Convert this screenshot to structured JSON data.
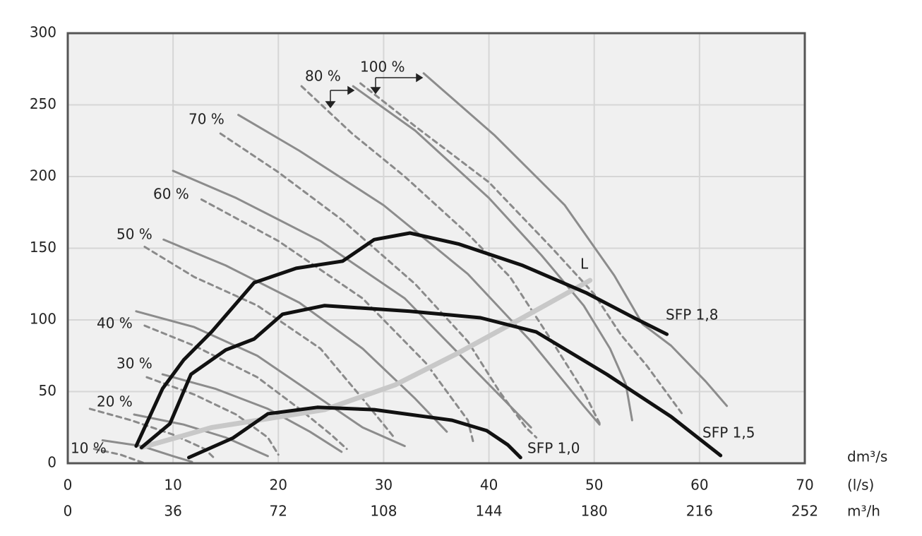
{
  "chart_data": {
    "type": "line",
    "x_unit_label": "dm³/s",
    "x_unit_label_2": "(l/s)",
    "x2_unit_label": "m³/h",
    "xlim": [
      0,
      70
    ],
    "xticks": [
      0,
      10,
      20,
      30,
      40,
      50,
      60,
      70
    ],
    "x2lim": [
      0,
      252
    ],
    "x2ticks": [
      0,
      36,
      72,
      108,
      144,
      180,
      216,
      252
    ],
    "ylim": [
      0,
      300
    ],
    "yticks": [
      0,
      50,
      100,
      150,
      200,
      250,
      300
    ],
    "grid": true,
    "speed_curves": [
      {
        "label": "10 %",
        "solid_x": [
          3.3,
          7,
          10,
          11.8
        ],
        "solid_y": [
          16,
          12,
          5,
          1
        ],
        "dashed_x": [
          2.5,
          5,
          7.3
        ],
        "dashed_y": [
          10,
          6,
          0
        ]
      },
      {
        "label": "20 %",
        "solid_x": [
          6.3,
          11,
          15,
          19
        ],
        "solid_y": [
          34,
          27,
          18,
          5
        ],
        "dashed_x": [
          2.1,
          6,
          10,
          13,
          14
        ],
        "dashed_y": [
          38,
          30,
          20,
          10,
          3
        ]
      },
      {
        "label": "30 %",
        "solid_x": [
          9,
          14,
          19,
          23,
          26
        ],
        "solid_y": [
          62,
          52,
          38,
          22,
          8
        ],
        "dashed_x": [
          7.5,
          12,
          16,
          19,
          20
        ],
        "dashed_y": [
          60,
          48,
          34,
          18,
          6
        ]
      },
      {
        "label": "40 %",
        "solid_x": [
          6.5,
          12,
          18,
          24,
          28,
          32
        ],
        "solid_y": [
          106,
          95,
          75,
          45,
          25,
          12
        ],
        "dashed_x": [
          7.3,
          12,
          18,
          22,
          25,
          26.5
        ],
        "dashed_y": [
          96,
          82,
          60,
          38,
          20,
          10
        ]
      },
      {
        "label": "50 %",
        "solid_x": [
          9.1,
          15,
          22,
          28,
          33,
          36
        ],
        "solid_y": [
          156,
          138,
          112,
          80,
          45,
          22
        ],
        "dashed_x": [
          7.3,
          12,
          18,
          24,
          28,
          31
        ],
        "dashed_y": [
          151,
          130,
          110,
          80,
          45,
          18
        ]
      },
      {
        "label": "60 %",
        "solid_x": [
          10,
          16,
          24,
          32,
          38,
          42,
          44
        ],
        "solid_y": [
          204,
          185,
          155,
          115,
          70,
          40,
          25
        ],
        "dashed_x": [
          12.7,
          20,
          28,
          34,
          38,
          38.5
        ],
        "dashed_y": [
          184,
          155,
          115,
          70,
          30,
          15
        ]
      },
      {
        "label": "70 %",
        "solid_x": [
          16.2,
          22,
          30,
          38,
          44,
          47,
          49,
          50.5
        ],
        "solid_y": [
          243,
          218,
          180,
          132,
          85,
          58,
          40,
          27
        ],
        "dashed_x": [
          14.5,
          20,
          26,
          33,
          38,
          41,
          43.5,
          44.5
        ],
        "dashed_y": [
          230,
          203,
          170,
          125,
          85,
          50,
          25,
          18
        ]
      },
      {
        "label": "80 %",
        "solid_x": [
          27.1,
          33,
          40,
          45,
          49,
          51.5,
          53,
          53.6
        ],
        "solid_y": [
          263,
          232,
          185,
          145,
          110,
          80,
          55,
          30
        ],
        "dashed_x": [
          22.2,
          27,
          32,
          38,
          42,
          46,
          49,
          50.5
        ],
        "dashed_y": [
          263,
          230,
          200,
          160,
          130,
          85,
          50,
          28
        ]
      },
      {
        "label": "100 %",
        "solid_x": [
          33.8,
          40.5,
          47.2,
          51.9,
          54.6,
          57.3,
          60.6,
          62.6
        ],
        "solid_y": [
          272,
          229,
          180,
          131,
          97,
          82,
          57,
          40
        ],
        "dashed_x": [
          27.8,
          33,
          40,
          46,
          50,
          52.5,
          55,
          58.3
        ],
        "dashed_y": [
          265,
          235,
          196,
          150,
          118,
          90,
          68,
          35
        ]
      }
    ],
    "sfp_curves": [
      {
        "label": "SFP 1,8",
        "x": [
          6.5,
          9,
          11,
          13.7,
          17.7,
          21.7,
          26.1,
          29.1,
          32.5,
          37.1,
          43.2,
          49.2,
          53.9,
          56.9
        ],
        "y": [
          12,
          52,
          72,
          92,
          126,
          136,
          141,
          156,
          160.6,
          153,
          138,
          119,
          101,
          90
        ]
      },
      {
        "label": "SFP 1,5",
        "x": [
          7,
          9.7,
          11.7,
          15,
          17.7,
          20.4,
          24.4,
          32.5,
          39.2,
          44.5,
          51.2,
          57.3,
          62
        ],
        "y": [
          11,
          27.6,
          62,
          79,
          86.7,
          104,
          110,
          106,
          101.5,
          91.6,
          62,
          32.5,
          5.4
        ]
      },
      {
        "label": "SFP 1,0",
        "x": [
          11.5,
          15.7,
          19,
          23.7,
          29.1,
          36.5,
          39.8,
          41.8,
          43
        ],
        "y": [
          4,
          17.7,
          34.5,
          39,
          37.4,
          30,
          22.7,
          12.8,
          4
        ]
      }
    ],
    "l_curve": {
      "label": "L",
      "x": [
        7,
        13.7,
        24.4,
        31.1,
        37.1,
        43.2,
        49.6
      ],
      "y": [
        11,
        25,
        37.4,
        54.7,
        77,
        101.5,
        127.6
      ]
    }
  }
}
